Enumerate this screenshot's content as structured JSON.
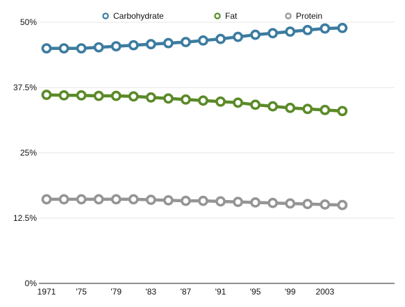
{
  "chart_data": {
    "type": "line",
    "title": "",
    "xlabel": "",
    "ylabel": "",
    "x": [
      1971,
      1973,
      1975,
      1977,
      1979,
      1981,
      1983,
      1985,
      1987,
      1989,
      1991,
      1993,
      1995,
      1997,
      1999,
      2001,
      2003,
      2005
    ],
    "x_tick_labels": [
      {
        "x": 1971,
        "label": "1971"
      },
      {
        "x": 1975,
        "label": "'75"
      },
      {
        "x": 1979,
        "label": "'79"
      },
      {
        "x": 1983,
        "label": "'83"
      },
      {
        "x": 1987,
        "label": "'87"
      },
      {
        "x": 1991,
        "label": "'91"
      },
      {
        "x": 1995,
        "label": "'95"
      },
      {
        "x": 1999,
        "label": "'99"
      },
      {
        "x": 2003,
        "label": "2003"
      }
    ],
    "xlim": [
      1971,
      2011
    ],
    "ylim": [
      0,
      50
    ],
    "y_ticks": [
      0,
      12.5,
      25,
      37.5,
      50
    ],
    "y_tick_labels": [
      "0%",
      "12.5%",
      "25%",
      "37.5%",
      "50%"
    ],
    "grid": true,
    "legend_position": "top",
    "series": [
      {
        "name": "Carbohydrate",
        "color": "#3c7ca0",
        "values": [
          45.0,
          45.0,
          45.0,
          45.2,
          45.4,
          45.6,
          45.8,
          46.0,
          46.2,
          46.5,
          46.8,
          47.2,
          47.6,
          47.9,
          48.2,
          48.5,
          48.8,
          48.9
        ]
      },
      {
        "name": "Fat",
        "color": "#5b8a28",
        "values": [
          36.1,
          36.0,
          36.0,
          35.9,
          35.9,
          35.8,
          35.6,
          35.4,
          35.2,
          35.0,
          34.8,
          34.6,
          34.2,
          33.9,
          33.6,
          33.4,
          33.2,
          33.0
        ]
      },
      {
        "name": "Protein",
        "color": "#959595",
        "values": [
          16.1,
          16.1,
          16.1,
          16.1,
          16.1,
          16.1,
          16.0,
          15.9,
          15.8,
          15.8,
          15.7,
          15.6,
          15.5,
          15.4,
          15.3,
          15.2,
          15.1,
          15.0
        ]
      }
    ]
  }
}
